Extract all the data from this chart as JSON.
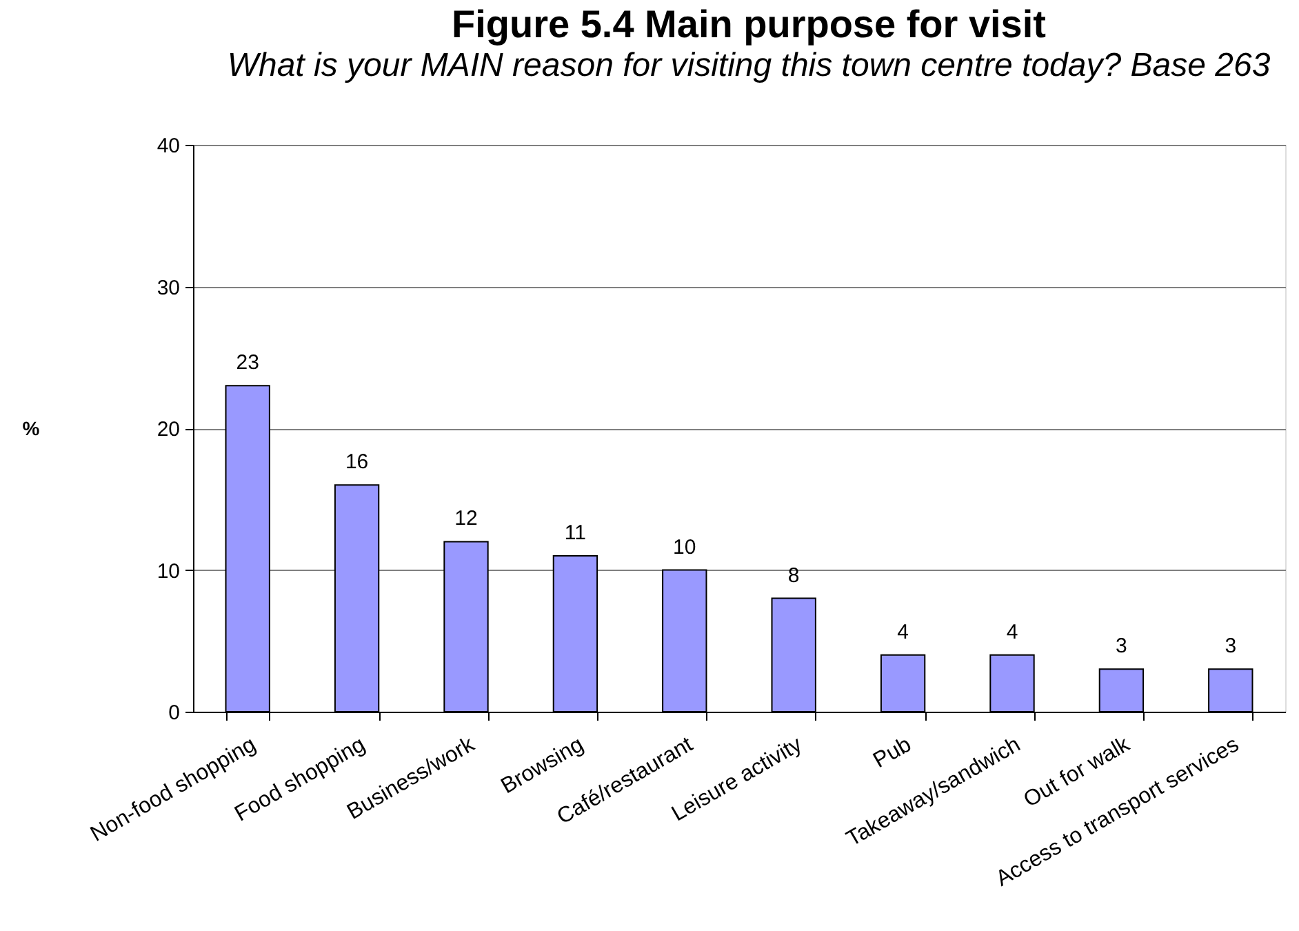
{
  "chart_data": {
    "type": "bar",
    "title": "Figure 5.4 Main purpose for visit",
    "subtitle": "What is your MAIN reason for visiting this town centre today? Base 263",
    "ylabel": "%",
    "categories": [
      "Non-food shopping",
      "Food shopping",
      "Business/work",
      "Browsing",
      "Café/restaurant",
      "Leisure activity",
      "Pub",
      "Takeaway/sandwich",
      "Out for walk",
      "Access to transport services"
    ],
    "values": [
      23,
      16,
      12,
      11,
      10,
      8,
      4,
      4,
      3,
      3
    ],
    "color": "#9999ff",
    "ylim": [
      0,
      40
    ],
    "yticks": [
      0,
      10,
      20,
      30,
      40
    ],
    "grid": "y",
    "data_labels": true
  }
}
